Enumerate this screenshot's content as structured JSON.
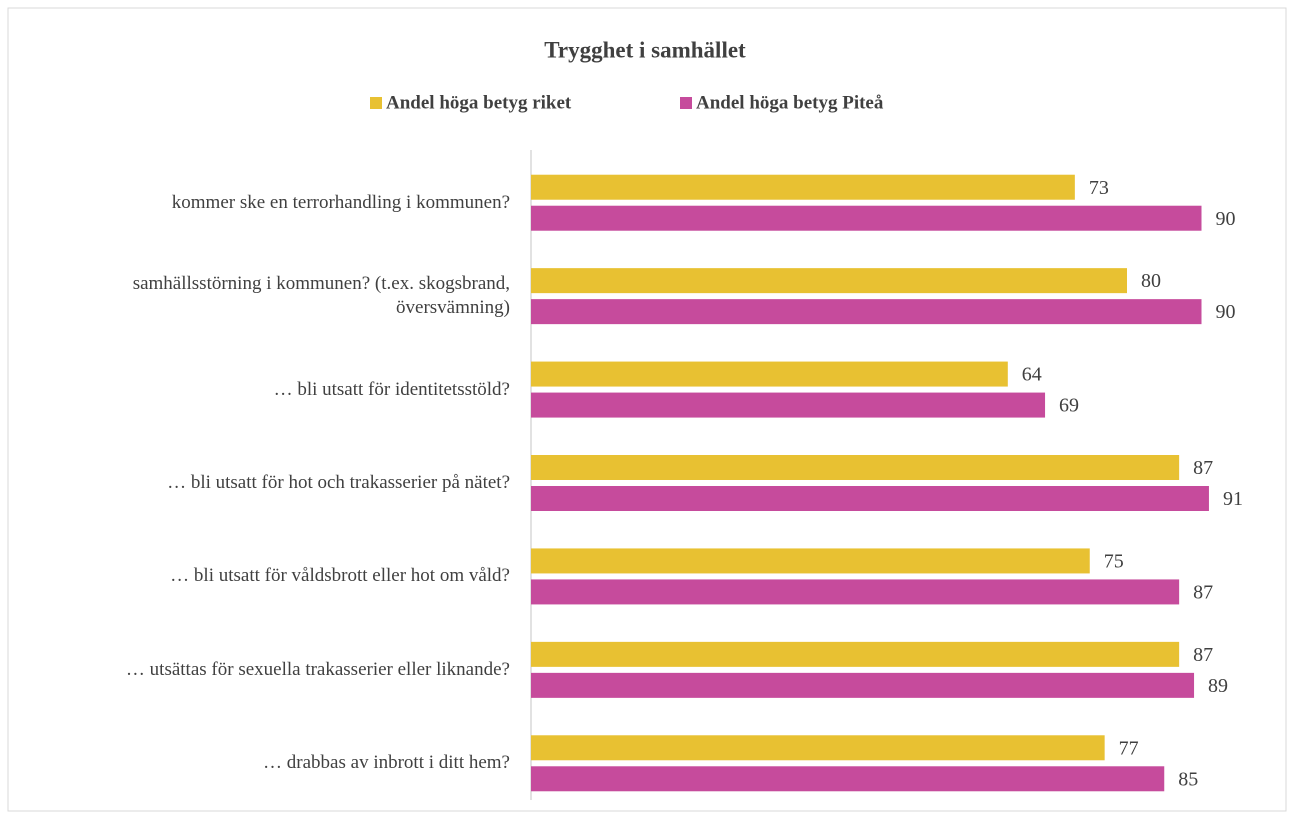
{
  "chart_data": {
    "type": "hbar",
    "title": "Trygghet i samhället",
    "categories": [
      "kommer ske en terrorhandling i kommunen?",
      "samhällsstörning i kommunen? (t.ex. skogsbrand, översvämning)",
      "… bli utsatt för identitetsstöld?",
      "… bli utsatt för hot och trakasserier på nätet?",
      "… bli utsatt för våldsbrott eller hot om våld?",
      "… utsättas för sexuella trakasserier eller liknande?",
      "… drabbas av inbrott i ditt hem?"
    ],
    "series": [
      {
        "name": "Andel höga betyg riket",
        "color": "#e8c132",
        "values": [
          73,
          80,
          64,
          87,
          75,
          87,
          77
        ]
      },
      {
        "name": "Andel höga betyg Piteå",
        "color": "#c64b9c",
        "values": [
          90,
          90,
          69,
          91,
          87,
          89,
          85
        ]
      }
    ],
    "xlim": [
      0,
      100
    ],
    "legend": "top"
  }
}
